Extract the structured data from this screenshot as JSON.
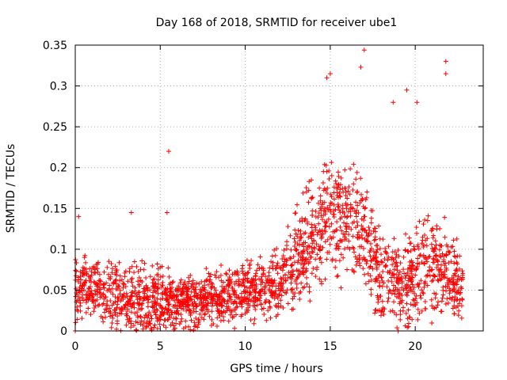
{
  "chart_data": {
    "type": "scatter",
    "title": "Day 168 of 2018, SRMTID for receiver ube1",
    "xlabel": "GPS time / hours",
    "ylabel": "SRMTID / TECUs",
    "xlim": [
      0,
      24
    ],
    "ylim": [
      0,
      0.35
    ],
    "x_ticks": [
      0,
      5,
      10,
      15,
      20
    ],
    "x_tick_labels": [
      "0",
      "5",
      "10",
      "15",
      "20"
    ],
    "y_ticks": [
      0,
      0.05,
      0.1,
      0.15,
      0.2,
      0.25,
      0.3,
      0.35
    ],
    "y_tick_labels": [
      "0",
      "0.05",
      "0.1",
      "0.15",
      "0.2",
      "0.25",
      "0.3",
      "0.35"
    ],
    "grid": true,
    "marker": "+",
    "color": "#ff0000",
    "x_data_end": 22.8,
    "series": [
      {
        "name": "SRMTID",
        "envelope": {
          "x": [
            0,
            1,
            2,
            3,
            4,
            5,
            6,
            7,
            8,
            9,
            10,
            11,
            12,
            13,
            14,
            15,
            16,
            17,
            18,
            19,
            20,
            21,
            22,
            22.8
          ],
          "median": [
            0.05,
            0.052,
            0.048,
            0.04,
            0.035,
            0.038,
            0.035,
            0.035,
            0.04,
            0.045,
            0.05,
            0.052,
            0.06,
            0.09,
            0.11,
            0.14,
            0.14,
            0.12,
            0.07,
            0.06,
            0.07,
            0.08,
            0.07,
            0.05
          ],
          "spread": [
            0.03,
            0.03,
            0.03,
            0.03,
            0.03,
            0.03,
            0.025,
            0.025,
            0.025,
            0.025,
            0.025,
            0.025,
            0.03,
            0.04,
            0.05,
            0.05,
            0.05,
            0.05,
            0.04,
            0.04,
            0.04,
            0.05,
            0.04,
            0.03
          ]
        },
        "notable_points": [
          {
            "x": 0.0,
            "y": 0.0
          },
          {
            "x": 0.2,
            "y": 0.14
          },
          {
            "x": 3.3,
            "y": 0.145
          },
          {
            "x": 5.4,
            "y": 0.145
          },
          {
            "x": 5.5,
            "y": 0.22
          },
          {
            "x": 14.8,
            "y": 0.31
          },
          {
            "x": 15.0,
            "y": 0.315
          },
          {
            "x": 16.8,
            "y": 0.323
          },
          {
            "x": 17.0,
            "y": 0.344
          },
          {
            "x": 18.7,
            "y": 0.28
          },
          {
            "x": 19.0,
            "y": 0.0
          },
          {
            "x": 19.5,
            "y": 0.295
          },
          {
            "x": 20.1,
            "y": 0.28
          },
          {
            "x": 21.8,
            "y": 0.33
          },
          {
            "x": 21.8,
            "y": 0.315
          }
        ]
      }
    ]
  }
}
